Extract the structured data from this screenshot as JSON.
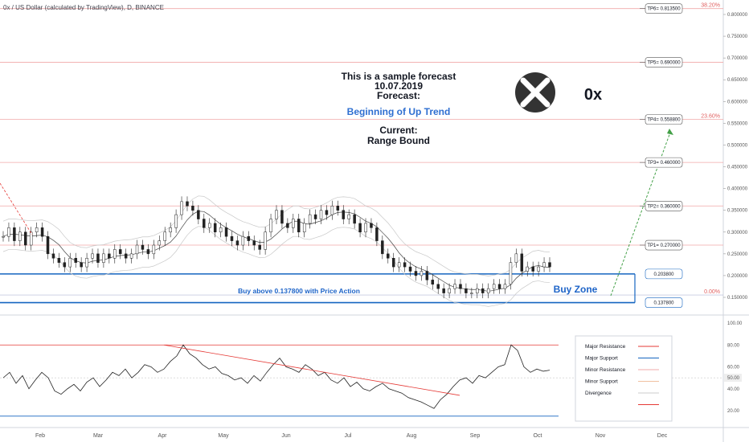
{
  "symbol_label": "0x / US Dollar (calculated by TradingView), D, BINANCE",
  "text_block": {
    "line1": "This is a sample forecast",
    "line2": "10.07.2019",
    "line3": "Forecast:",
    "line4": "Beginning of Up Trend",
    "line5": "Current:",
    "line6": "Range Bound"
  },
  "brand": "0x",
  "buy_zone_label": "Buy Zone",
  "buy_above_label": "Buy above 0.137800 with Price Action",
  "colors": {
    "major_resistance": "#e53935",
    "major_support": "#1565c0",
    "minor_resistance": "#f0a8a8",
    "minor_support": "#f0c0a0",
    "divergence": "#cccccc",
    "forecast_arrow": "#43a047",
    "accent_text": "#2962ff"
  },
  "legend": {
    "items": [
      {
        "label": "Major Resistance",
        "color": "#e53935"
      },
      {
        "label": "Major Support",
        "color": "#1565c0"
      },
      {
        "label": "Minor Resistance",
        "color": "#f0a8a8"
      },
      {
        "label": "Minor Support",
        "color": "#f0c0a0"
      },
      {
        "label": "Divergence",
        "color": "#cccccc"
      },
      {
        "label": "",
        "color": "#e53935"
      }
    ]
  },
  "chart_data": {
    "type": "candlestick",
    "x_labels": [
      "Feb",
      "Mar",
      "Apr",
      "May",
      "Jun",
      "Jul",
      "Aug",
      "Sep",
      "Oct",
      "Nov",
      "Dec"
    ],
    "y_axis": {
      "ticks": [
        "0.800000",
        "0.750000",
        "0.700000",
        "0.650000",
        "0.600000",
        "0.550000",
        "0.500000",
        "0.450000",
        "0.400000",
        "0.350000",
        "0.300000",
        "0.250000",
        "0.200000",
        "0.150000"
      ],
      "ylim": [
        0.12,
        0.82
      ]
    },
    "fib_levels": [
      {
        "label": "38.20%",
        "value": 0.8135
      },
      {
        "label": "23.60%",
        "value": 0.5588
      },
      {
        "label": "0.00%",
        "value": 0.1555
      }
    ],
    "targets": [
      {
        "label": "TP6= 0.813500",
        "value": 0.8135
      },
      {
        "label": "TP5= 0.690000",
        "value": 0.69
      },
      {
        "label": "TP4= 0.558800",
        "value": 0.5588
      },
      {
        "label": "TP3= 0.460000",
        "value": 0.46
      },
      {
        "label": "TP2= 0.360000",
        "value": 0.36
      },
      {
        "label": "TP1= 0.270000",
        "value": 0.27
      }
    ],
    "support_labels": [
      {
        "label": "0.203800",
        "value": 0.2038
      },
      {
        "label": "0.137800",
        "value": 0.1378
      }
    ],
    "price_closes": [
      0.29,
      0.31,
      0.28,
      0.3,
      0.27,
      0.3,
      0.31,
      0.29,
      0.25,
      0.24,
      0.23,
      0.22,
      0.24,
      0.23,
      0.22,
      0.24,
      0.25,
      0.23,
      0.25,
      0.24,
      0.26,
      0.25,
      0.24,
      0.25,
      0.27,
      0.26,
      0.25,
      0.27,
      0.28,
      0.3,
      0.31,
      0.34,
      0.37,
      0.36,
      0.35,
      0.33,
      0.31,
      0.32,
      0.3,
      0.31,
      0.29,
      0.28,
      0.27,
      0.29,
      0.28,
      0.27,
      0.26,
      0.3,
      0.33,
      0.35,
      0.32,
      0.31,
      0.33,
      0.3,
      0.32,
      0.34,
      0.33,
      0.35,
      0.34,
      0.36,
      0.35,
      0.33,
      0.34,
      0.32,
      0.3,
      0.32,
      0.31,
      0.28,
      0.25,
      0.24,
      0.22,
      0.23,
      0.22,
      0.21,
      0.2,
      0.21,
      0.19,
      0.18,
      0.17,
      0.16,
      0.17,
      0.18,
      0.17,
      0.16,
      0.16,
      0.17,
      0.16,
      0.17,
      0.18,
      0.17,
      0.18,
      0.23,
      0.25,
      0.21,
      0.22,
      0.21,
      0.22,
      0.23,
      0.22
    ],
    "oscillator": {
      "ticks": [
        "100.00",
        "80.00",
        "60.00",
        "40.00",
        "20.00"
      ],
      "current_label": "50.00",
      "ylim": [
        0,
        100
      ],
      "values": [
        50,
        55,
        45,
        52,
        40,
        48,
        55,
        50,
        38,
        35,
        40,
        44,
        38,
        46,
        50,
        42,
        48,
        55,
        52,
        58,
        50,
        55,
        62,
        60,
        55,
        58,
        65,
        70,
        80,
        72,
        68,
        62,
        58,
        60,
        54,
        52,
        48,
        50,
        45,
        52,
        47,
        55,
        62,
        68,
        60,
        58,
        55,
        62,
        58,
        52,
        55,
        48,
        45,
        50,
        42,
        46,
        40,
        38,
        42,
        45,
        40,
        38,
        36,
        32,
        30,
        28,
        25,
        22,
        30,
        35,
        42,
        48,
        50,
        45,
        52,
        50,
        55,
        60,
        62,
        80,
        75,
        60,
        55,
        58,
        56,
        57
      ]
    }
  }
}
